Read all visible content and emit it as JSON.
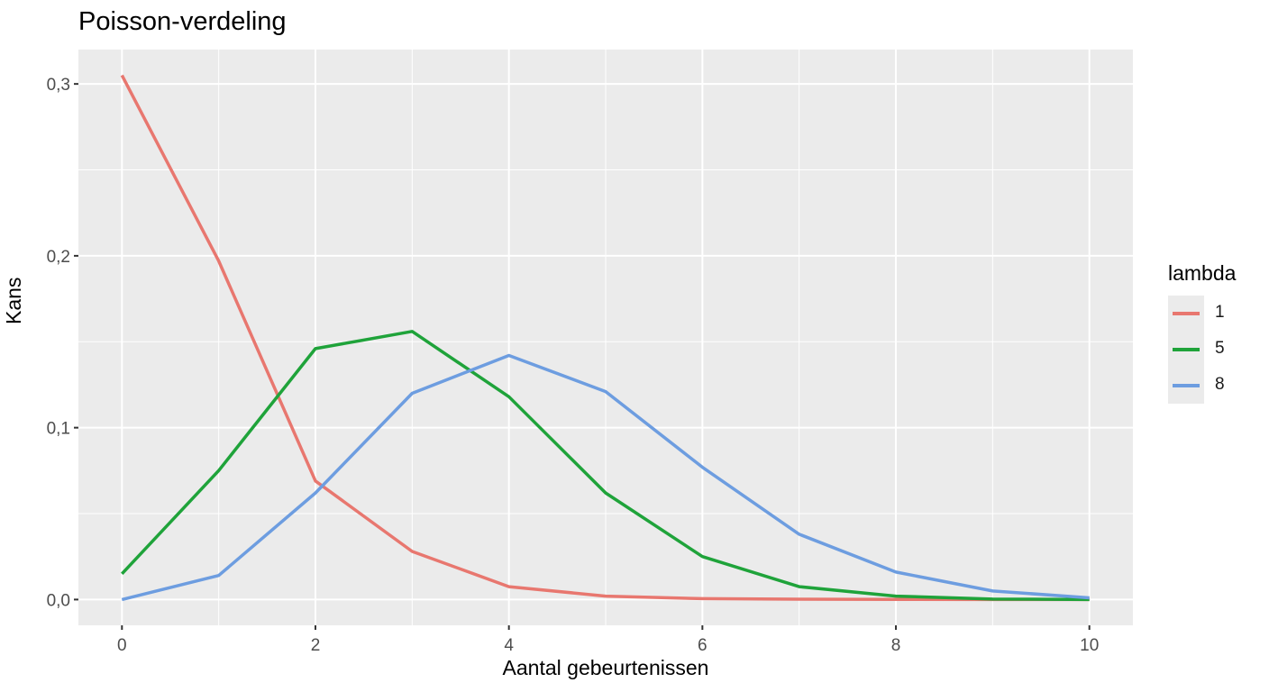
{
  "chart_data": {
    "type": "line",
    "title": "Poisson-verdeling",
    "xlabel": "Aantal gebeurtenissen",
    "ylabel": "Kans",
    "x": [
      0,
      1,
      2,
      3,
      4,
      5,
      6,
      7,
      8,
      9,
      10
    ],
    "xlim": [
      -0.45,
      10.45
    ],
    "ylim": [
      -0.015,
      0.32
    ],
    "x_ticks": [
      0,
      2,
      4,
      6,
      8,
      10
    ],
    "x_tick_labels": [
      "0",
      "2",
      "4",
      "6",
      "8",
      "10"
    ],
    "y_ticks": [
      0.0,
      0.1,
      0.2,
      0.3
    ],
    "y_tick_labels": [
      "0,0",
      "0,1",
      "0,2",
      "0,3"
    ],
    "grid": true,
    "legend": {
      "title": "lambda",
      "position": "right"
    },
    "series": [
      {
        "name": "1",
        "color": "#e8776f",
        "values": [
          0.305,
          0.197,
          0.069,
          0.028,
          0.0075,
          0.002,
          0.0005,
          0.0002,
          0.0001,
          0.0,
          0.0
        ]
      },
      {
        "name": "5",
        "color": "#1fa33a",
        "values": [
          0.015,
          0.075,
          0.146,
          0.156,
          0.118,
          0.062,
          0.025,
          0.0075,
          0.002,
          0.0003,
          0.0
        ]
      },
      {
        "name": "8",
        "color": "#6d9de0",
        "values": [
          0.0,
          0.014,
          0.062,
          0.12,
          0.142,
          0.121,
          0.077,
          0.038,
          0.016,
          0.005,
          0.001
        ]
      }
    ]
  },
  "panel": {
    "background": "#ebebeb",
    "grid_color": "#ffffff"
  }
}
